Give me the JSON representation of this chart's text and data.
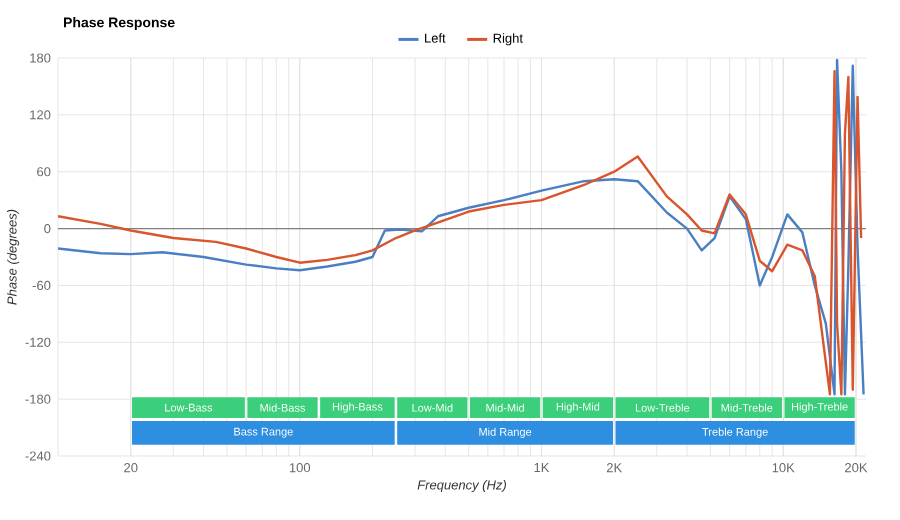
{
  "chart_data": {
    "type": "line",
    "title": "Phase Response",
    "xlabel": "Frequency (Hz)",
    "ylabel": "Phase (degrees)",
    "log": "x",
    "grid": true,
    "legend": "top",
    "marker": "none",
    "line_style": "solid",
    "xlim": [
      10,
      22000
    ],
    "ylim": [
      -240,
      180
    ],
    "xticks": [
      20,
      100,
      {
        "value": 1000,
        "label": "1K"
      },
      {
        "value": 2000,
        "label": "2K"
      },
      {
        "value": 10000,
        "label": "10K"
      },
      {
        "value": 20000,
        "label": "20K"
      }
    ],
    "yticks": [
      -240,
      -180,
      -120,
      -60,
      0,
      60,
      120,
      180
    ],
    "ref_lines": [
      {
        "axis": "y",
        "value": 0,
        "color": "#808080"
      }
    ],
    "bands": [
      {
        "axis": "x",
        "from": 20,
        "to": 60,
        "label": "Low-Bass",
        "color": "#3ccf7b"
      },
      {
        "axis": "x",
        "from": 60,
        "to": 120,
        "label": "Mid-Bass",
        "color": "#3ccf7b"
      },
      {
        "axis": "x",
        "from": 120,
        "to": 250,
        "label": "High-Bass",
        "color": "#3ccf7b"
      },
      {
        "axis": "x",
        "from": 250,
        "to": 500,
        "label": "Low-Mid",
        "color": "#3ccf7b"
      },
      {
        "axis": "x",
        "from": 500,
        "to": 1000,
        "label": "Mid-Mid",
        "color": "#3ccf7b"
      },
      {
        "axis": "x",
        "from": 1000,
        "to": 2000,
        "label": "High-Mid",
        "color": "#3ccf7b"
      },
      {
        "axis": "x",
        "from": 2000,
        "to": 5000,
        "label": "Low-Treble",
        "color": "#3ccf7b"
      },
      {
        "axis": "x",
        "from": 5000,
        "to": 10000,
        "label": "Mid-Treble",
        "color": "#3ccf7b"
      },
      {
        "axis": "x",
        "from": 10000,
        "to": 20000,
        "label": "High-Treble",
        "color": "#3ccf7b"
      },
      {
        "axis": "x",
        "from": 20,
        "to": 250,
        "label": "Bass Range",
        "color": "#2e8fe0"
      },
      {
        "axis": "x",
        "from": 250,
        "to": 2000,
        "label": "Mid Range",
        "color": "#2e8fe0"
      },
      {
        "axis": "x",
        "from": 2000,
        "to": 20000,
        "label": "Treble Range",
        "color": "#2e8fe0"
      }
    ],
    "series": [
      {
        "name": "Left",
        "color": "#4a7fc4",
        "x": [
          10,
          15,
          20,
          27,
          40,
          60,
          80,
          100,
          130,
          170,
          200,
          225,
          260,
          320,
          373,
          500,
          700,
          1000,
          1500,
          2000,
          2500,
          3300,
          4000,
          4600,
          5200,
          6000,
          7000,
          8000,
          9000,
          10400,
          12000,
          13500,
          15000,
          16300,
          16700,
          17400,
          18000,
          18600,
          19400,
          20300,
          21500
        ],
        "values": [
          -21,
          -26,
          -27,
          -25,
          -30,
          -38,
          -42,
          -44,
          -40,
          -35,
          -30,
          -2,
          -1,
          -3,
          13,
          22,
          30,
          40,
          50,
          52,
          50,
          17,
          0,
          -23,
          -10,
          34,
          10,
          -60,
          -30,
          15,
          -4,
          -60,
          -100,
          -175,
          178,
          60,
          -175,
          -40,
          172,
          -20,
          -175
        ]
      },
      {
        "name": "Right",
        "color": "#d9552d",
        "x": [
          10,
          15,
          20,
          30,
          45,
          60,
          80,
          100,
          130,
          170,
          200,
          250,
          300,
          350,
          500,
          700,
          1000,
          1500,
          2000,
          2500,
          3300,
          4000,
          4600,
          5200,
          6000,
          7000,
          8000,
          9000,
          10400,
          12000,
          13500,
          15600,
          16300,
          16700,
          17400,
          18000,
          18600,
          19400,
          20300,
          21000
        ],
        "values": [
          13,
          5,
          -2,
          -10,
          -14,
          -21,
          -30,
          -36,
          -33,
          -28,
          -23,
          -10,
          -2,
          4,
          18,
          25,
          30,
          46,
          60,
          76,
          34,
          15,
          -2,
          -5,
          36,
          15,
          -34,
          -45,
          -17,
          -23,
          -50,
          -175,
          166,
          -100,
          -175,
          100,
          160,
          -170,
          139,
          -10
        ]
      }
    ]
  }
}
